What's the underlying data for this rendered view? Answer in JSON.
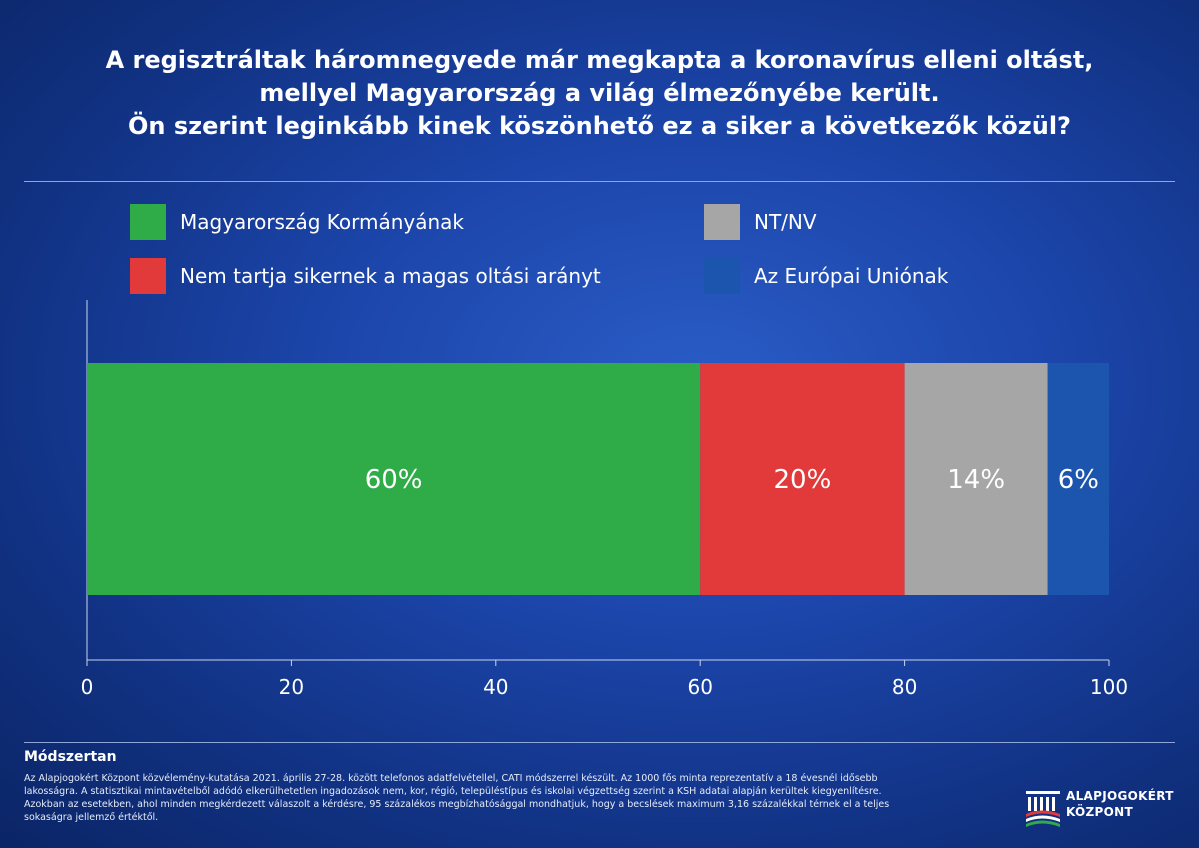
{
  "header": {
    "title_lines": [
      "A regisztráltak háromnegyede már megkapta a koronavírus elleni oltást,",
      "mellyel Magyarország a világ élmezőnyébe került.",
      "Ön szerint leginkább kinek köszönhető ez a siker a következők közül?"
    ]
  },
  "chart_data": {
    "type": "bar",
    "orientation": "horizontal-stacked",
    "categories": [
      ""
    ],
    "series": [
      {
        "name": "Magyarország Kormányának",
        "values": [
          60
        ],
        "label": "60%",
        "color": "#2fac48"
      },
      {
        "name": "Nem tartja sikernek a magas oltási arányt",
        "values": [
          20
        ],
        "label": "20%",
        "color": "#e2393a"
      },
      {
        "name": "NT/NV",
        "values": [
          14
        ],
        "label": "14%",
        "color": "#a6a6a6"
      },
      {
        "name": "Az Európai Uniónak",
        "values": [
          6
        ],
        "label": "6%",
        "color": "#1c55ad"
      }
    ],
    "xlim": [
      0,
      100
    ],
    "xticks": [
      "0",
      "20",
      "40",
      "60",
      "80",
      "100"
    ],
    "grid": false,
    "legend": "top, two columns"
  },
  "footer": {
    "method_title": "Módszertan",
    "method_text": "Az Alapjogokért Központ közvélemény-kutatása 2021. április 27-28. között telefonos adatfelvétellel, CATI módszerrel készült. Az 1000 fős minta reprezentatív a 18 évesnél idősebb lakosságra. A statisztikai mintavételből adódó elkerülhetetlen ingadozások nem, kor, régió, településtípus és iskolai végzettség szerint a KSH adatai alapján kerültek kiegyenlítésre. Azokban az esetekben, ahol minden megkérdezett válaszolt a kérdésre, 95 százalékos megbízhatósággal mondhatjuk, hogy a becslések maximum 3,16 százalékkal térnek el a teljes sokaságra jellemző értéktől.",
    "logo_line1": "ALAPJOGOKÉRT",
    "logo_line2": "KÖZPONT"
  }
}
